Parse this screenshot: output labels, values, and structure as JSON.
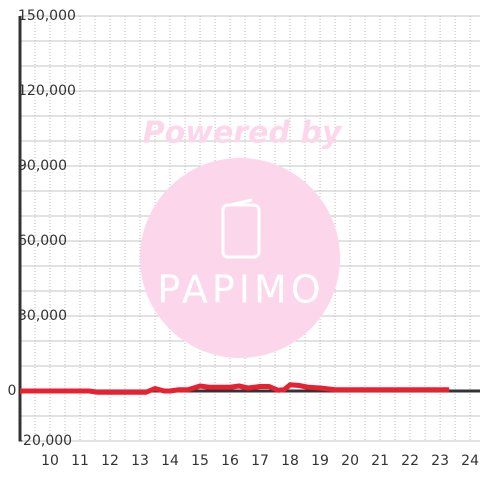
{
  "chart_data": {
    "type": "line",
    "watermark": {
      "text": "Powered by",
      "logo": "PAPIMO"
    },
    "x": [
      9,
      10,
      11,
      11.3,
      11.6,
      12,
      12.5,
      13,
      13.2,
      13.5,
      13.8,
      14,
      14.3,
      14.6,
      15,
      15.3,
      15.6,
      16,
      16.3,
      16.6,
      17,
      17.3,
      17.6,
      17.8,
      18,
      18.3,
      18.6,
      19,
      19.5,
      20,
      21,
      22,
      23.3
    ],
    "series": [
      {
        "color": "#e8202f",
        "values": [
          0,
          0,
          0,
          0,
          -500,
          -500,
          -500,
          -500,
          -500,
          1000,
          0,
          0,
          500,
          500,
          2000,
          1500,
          1500,
          1500,
          2000,
          1200,
          1800,
          1800,
          300,
          500,
          2500,
          2200,
          1500,
          1200,
          500,
          500,
          500,
          500,
          500
        ]
      }
    ],
    "xlim": [
      9,
      24.33
    ],
    "ylim": [
      -20000,
      150000
    ],
    "xticks": [
      10,
      11,
      12,
      13,
      14,
      15,
      16,
      17,
      18,
      19,
      20,
      21,
      22,
      23,
      24
    ],
    "minor_xticks": [
      9.5,
      10.5,
      11.5,
      12.5,
      13.5,
      14.5,
      15.5,
      16.5,
      17.5,
      18.5,
      19.5,
      20.5,
      21.5,
      22.5,
      23.5
    ],
    "yticks": [
      {
        "value": -20000,
        "label": "-20,000"
      },
      0,
      {
        "value": 30000,
        "label": "30,000"
      },
      {
        "value": 60000,
        "label": "60,000"
      },
      {
        "value": 90000,
        "label": "90,000"
      },
      {
        "value": 120000,
        "label": "120,000"
      },
      {
        "value": 150000,
        "label": "150,000"
      }
    ],
    "minor_yticks": [
      -10000,
      10000,
      20000,
      40000,
      50000,
      70000,
      80000,
      100000,
      110000,
      130000,
      140000
    ],
    "grid": true
  }
}
